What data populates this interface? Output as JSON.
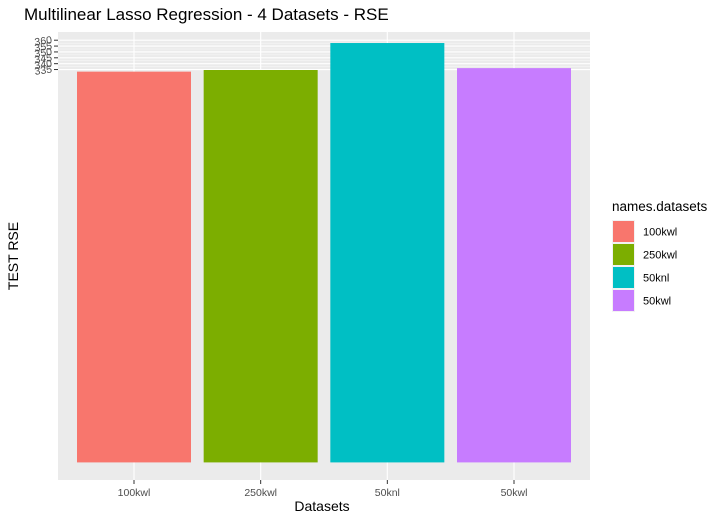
{
  "chart_data": {
    "type": "bar",
    "title": "Multilinear Lasso Regression - 4 Datasets - RSE",
    "xlabel": "Datasets",
    "ylabel": "TEST RSE",
    "categories": [
      "100kwl",
      "250kwl",
      "50knl",
      "50kwl"
    ],
    "values": [
      333.2,
      334.6,
      357.6,
      336.2
    ],
    "colors": [
      "#F8766D",
      "#7CAE00",
      "#00BFC4",
      "#C77CFF"
    ],
    "y_ticks": [
      335,
      340,
      345,
      350,
      355,
      360
    ],
    "y_tick_labels": [
      "335",
      "340",
      "345",
      "350",
      "355",
      "360"
    ],
    "ylim": [
      -15,
      367
    ],
    "grid": true,
    "legend": {
      "title": "names.datasets",
      "position": "right",
      "entries": [
        "100kwl",
        "250kwl",
        "50knl",
        "50kwl"
      ]
    }
  }
}
